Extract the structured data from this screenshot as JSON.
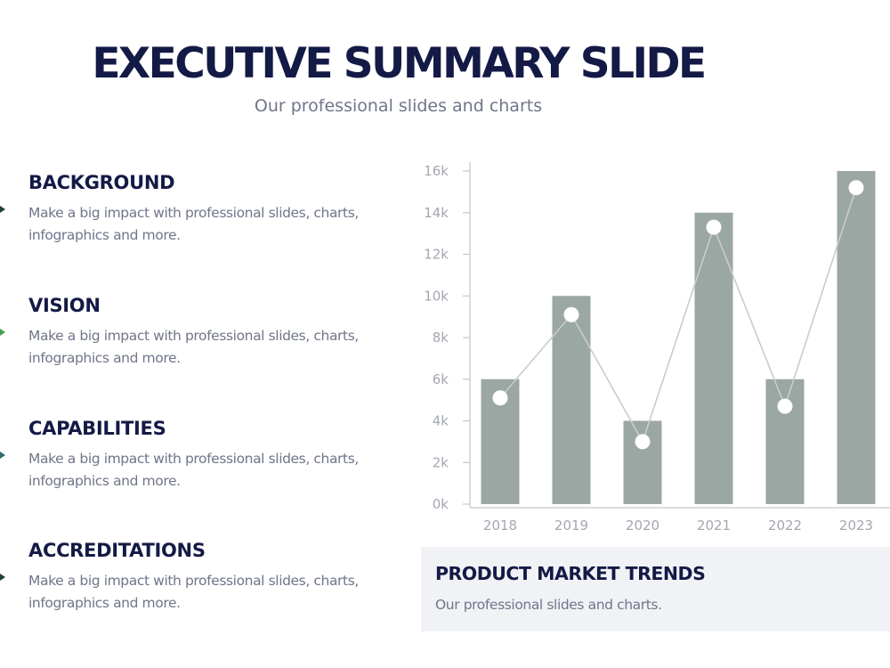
{
  "header": {
    "title": "EXECUTIVE SUMMARY SLIDE",
    "subtitle": "Our professional slides and charts"
  },
  "sections": [
    {
      "heading": "BACKGROUND",
      "body": "Make a big impact with professional slides, charts, infographics and more.",
      "arrow_color": "#1e4040"
    },
    {
      "heading": "VISION",
      "body": "Make a big impact with professional slides, charts, infographics and more.",
      "arrow_color": "#3fa34d"
    },
    {
      "heading": "CAPABILITIES",
      "body": "Make a big impact with professional slides, charts, infographics and more.",
      "arrow_color": "#2e6b6b"
    },
    {
      "heading": "ACCREDITATIONS",
      "body": "Make a big impact with professional slides, charts, infographics and more.",
      "arrow_color": "#1e4040"
    }
  ],
  "chart_caption": {
    "title": "PRODUCT MARKET TRENDS",
    "text": "Our professional slides and charts."
  },
  "chart_data": {
    "type": "bar",
    "categories": [
      "2018",
      "2019",
      "2020",
      "2021",
      "2022",
      "2023"
    ],
    "values": [
      6000,
      10000,
      4000,
      14000,
      6000,
      16000
    ],
    "line_values": [
      5100,
      9100,
      3000,
      13300,
      4700,
      15200
    ],
    "ylim": [
      0,
      16000
    ],
    "yticks": [
      0,
      2000,
      4000,
      6000,
      8000,
      10000,
      12000,
      14000,
      16000
    ],
    "ytick_labels": [
      "0k",
      "2k",
      "4k",
      "6k",
      "8k",
      "10k",
      "12k",
      "14k",
      "16k"
    ],
    "grid": false,
    "colors": {
      "bar": "#9ba7a3",
      "line": "#c8cccf",
      "marker": "#ffffff",
      "axis": "#c4c6cc"
    }
  }
}
